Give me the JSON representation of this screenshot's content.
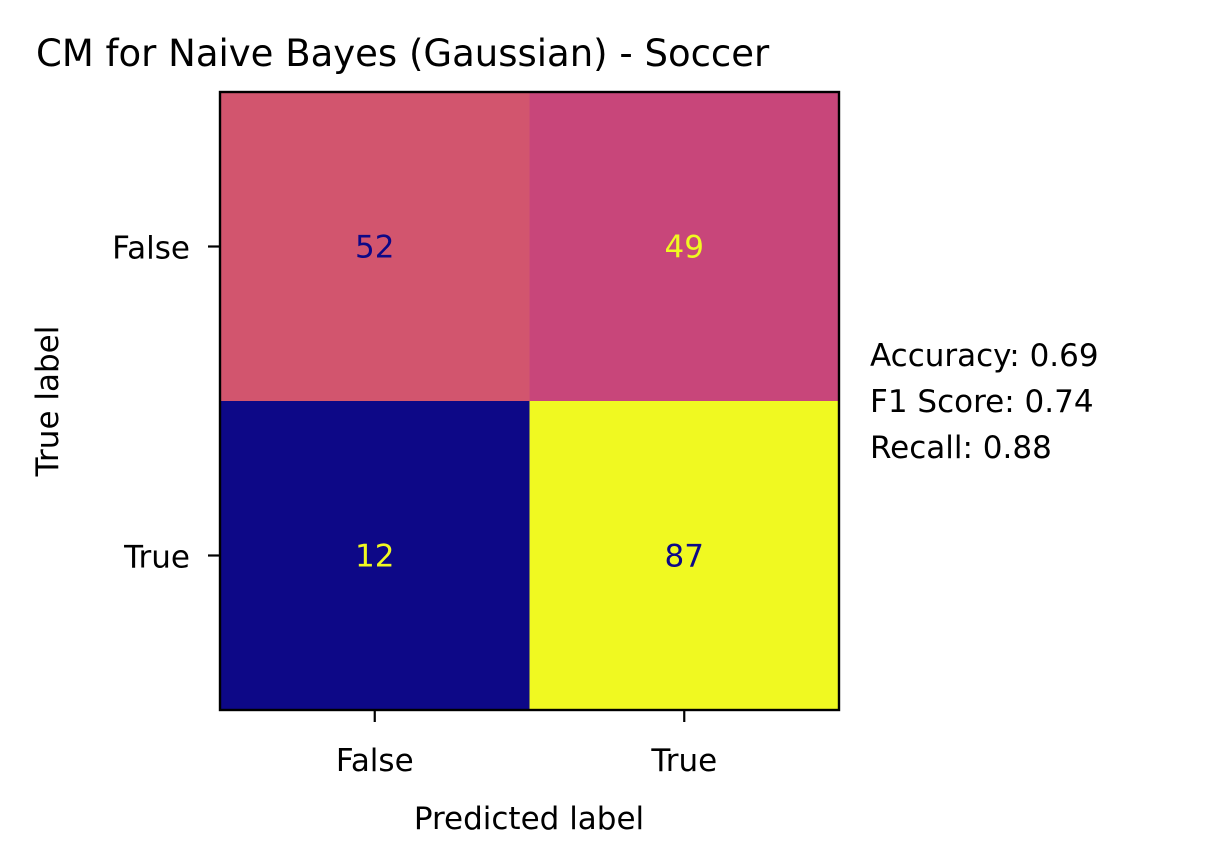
{
  "chart_data": {
    "type": "heatmap",
    "title": "CM for Naive Bayes (Gaussian) - Soccer",
    "xlabel": "Predicted label",
    "ylabel": "True label",
    "x_categories": [
      "False",
      "True"
    ],
    "y_categories": [
      "False",
      "True"
    ],
    "matrix": [
      [
        52,
        49
      ],
      [
        12,
        87
      ]
    ],
    "colormap": "plasma",
    "vmin": 12,
    "vmax": 87,
    "cell_colors": [
      [
        "#d2556e",
        "#c8467a"
      ],
      [
        "#0d0887",
        "#f0f921"
      ]
    ],
    "text_colors": [
      [
        "#0d0887",
        "#f0f921"
      ],
      [
        "#f0f921",
        "#0d0887"
      ]
    ],
    "grid": false,
    "metrics": [
      {
        "label": "Accuracy",
        "value": "0.69",
        "text": "Accuracy: 0.69"
      },
      {
        "label": "F1 Score",
        "value": "0.74",
        "text": "F1 Score: 0.74"
      },
      {
        "label": "Recall",
        "value": "0.88",
        "text": "Recall: 0.88"
      }
    ]
  }
}
